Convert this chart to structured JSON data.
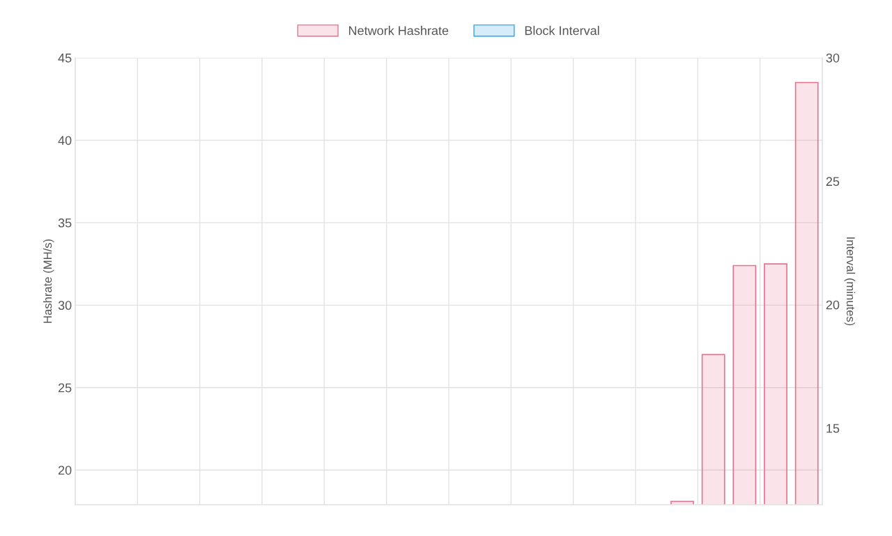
{
  "chart_data": {
    "type": "bar",
    "ylabel": "Hashrate (MH/s)",
    "y2label": "Interval (minutes)",
    "categories": [
      null,
      null,
      null,
      null,
      null,
      null,
      null,
      null,
      null,
      null,
      null,
      null,
      null,
      null,
      null,
      null,
      null,
      null,
      null,
      null,
      null,
      null,
      null,
      null
    ],
    "series": [
      {
        "name": "Network Hashrate",
        "color": "#e8718f",
        "values": [
          null,
          null,
          null,
          null,
          null,
          null,
          null,
          null,
          null,
          null,
          null,
          null,
          null,
          null,
          null,
          null,
          null,
          null,
          null,
          18.1,
          27.0,
          32.4,
          32.5,
          43.5
        ]
      },
      {
        "name": "Block Interval",
        "color": "#36a2eb",
        "values": [
          null,
          null,
          null,
          null,
          null,
          null,
          null,
          null,
          null,
          null,
          null,
          null,
          null,
          null,
          null,
          null,
          null,
          null,
          null,
          null,
          null,
          null,
          null,
          null
        ]
      }
    ],
    "ylim": [
      17.9,
      45
    ],
    "yticks": [
      20,
      25,
      30,
      35,
      40,
      45
    ],
    "y2lim": [
      11.9,
      30
    ],
    "y2ticks": [
      15,
      20,
      25,
      30
    ],
    "grid": true,
    "legend": "top",
    "tick_labels": "y"
  }
}
